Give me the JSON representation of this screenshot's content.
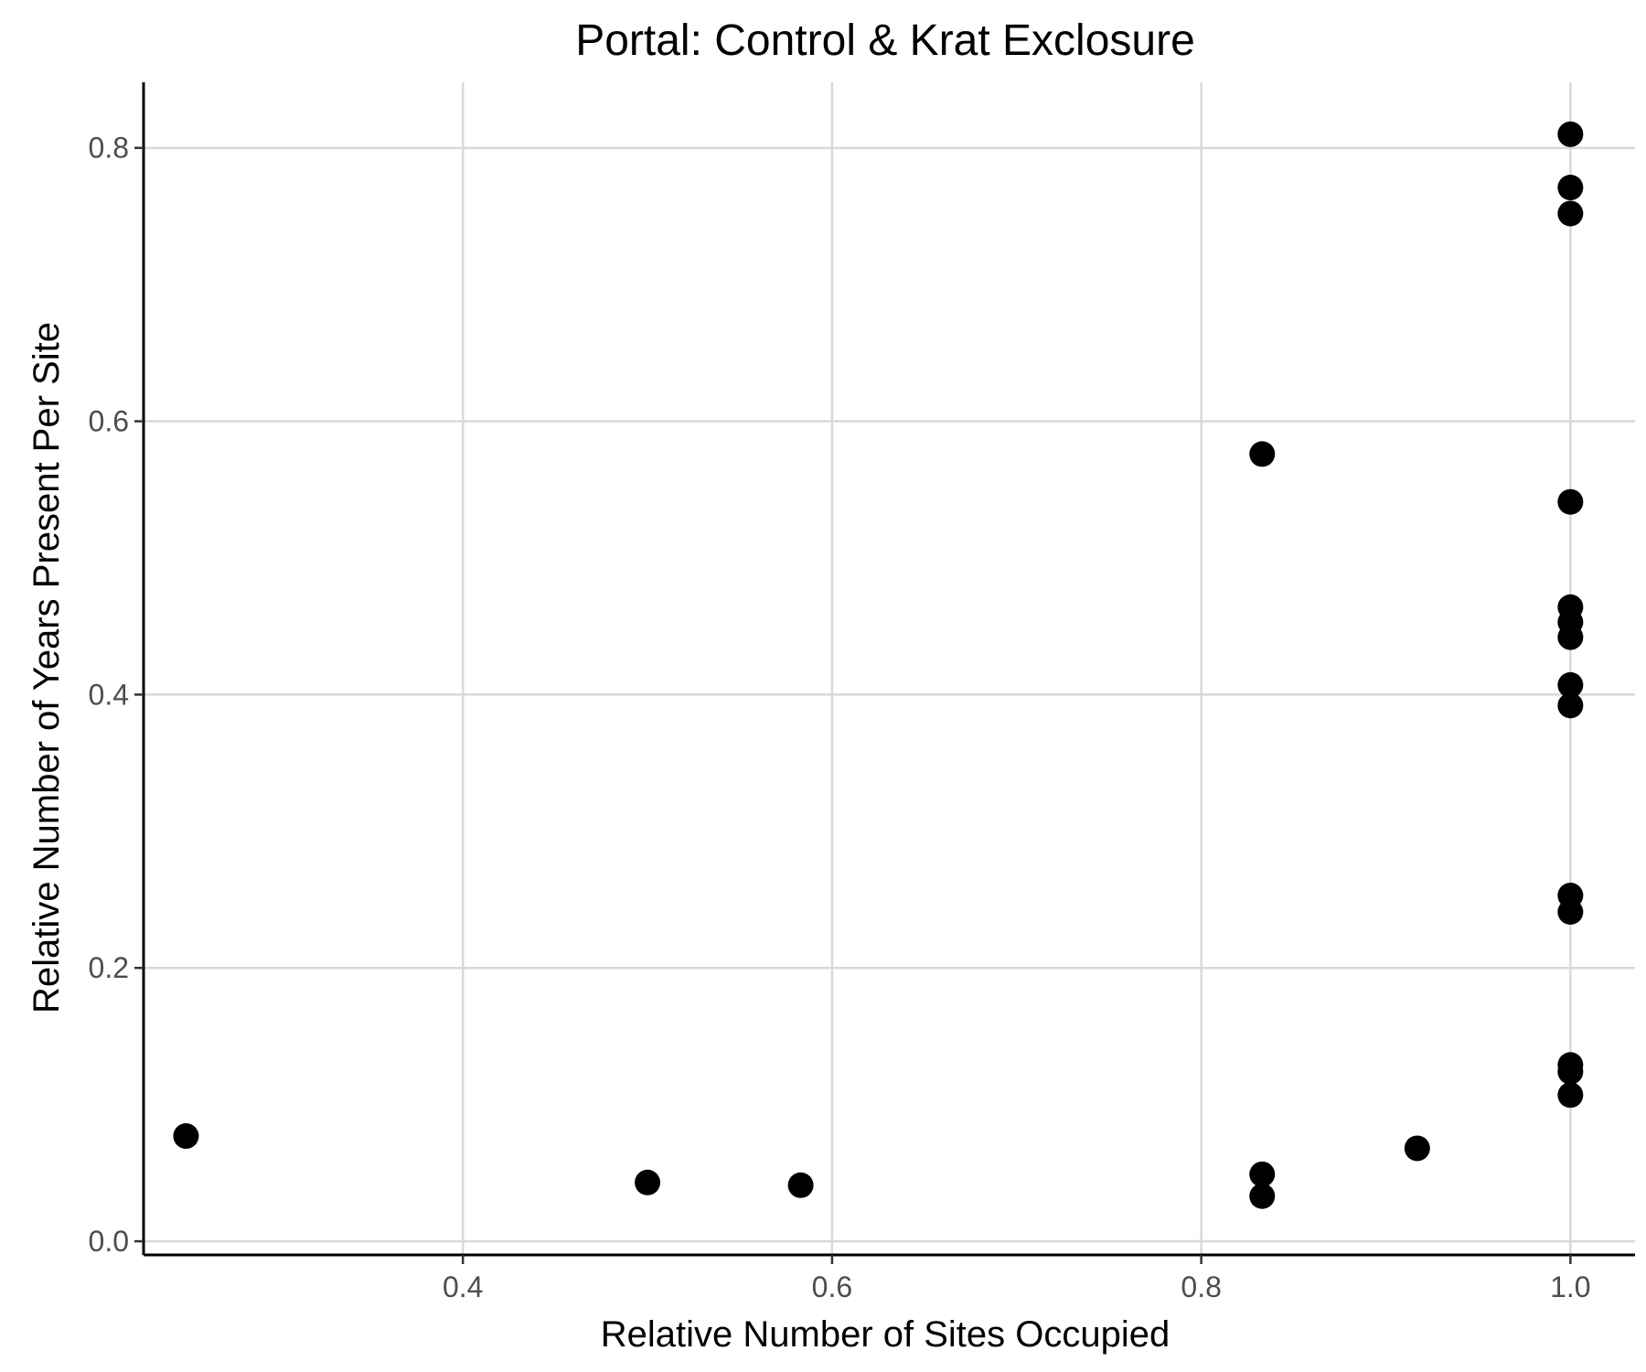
{
  "chart_data": {
    "type": "scatter",
    "title": "Portal: Control & Krat Exclosure",
    "xlabel": "Relative Number of Sites Occupied",
    "ylabel": "Relative Number of Years Present Per Site",
    "xlim": [
      0.227,
      1.035
    ],
    "ylim": [
      -0.01,
      0.848
    ],
    "x_ticks": [
      0.4,
      0.6,
      0.8,
      1.0
    ],
    "x_tick_labels": [
      "0.4",
      "0.6",
      "0.8",
      "1.0"
    ],
    "y_ticks": [
      0.0,
      0.2,
      0.4,
      0.6,
      0.8
    ],
    "y_tick_labels": [
      "0.0",
      "0.2",
      "0.4",
      "0.6",
      "0.8"
    ],
    "grid": true,
    "legend": "none",
    "point_color": "#000000",
    "points": [
      {
        "x": 0.25,
        "y": 0.077
      },
      {
        "x": 0.5,
        "y": 0.043
      },
      {
        "x": 0.583,
        "y": 0.041
      },
      {
        "x": 0.833,
        "y": 0.576
      },
      {
        "x": 0.833,
        "y": 0.049
      },
      {
        "x": 0.833,
        "y": 0.033
      },
      {
        "x": 0.917,
        "y": 0.068
      },
      {
        "x": 1.0,
        "y": 0.81
      },
      {
        "x": 1.0,
        "y": 0.771
      },
      {
        "x": 1.0,
        "y": 0.752
      },
      {
        "x": 1.0,
        "y": 0.541
      },
      {
        "x": 1.0,
        "y": 0.464
      },
      {
        "x": 1.0,
        "y": 0.453
      },
      {
        "x": 1.0,
        "y": 0.442
      },
      {
        "x": 1.0,
        "y": 0.407
      },
      {
        "x": 1.0,
        "y": 0.392
      },
      {
        "x": 1.0,
        "y": 0.253
      },
      {
        "x": 1.0,
        "y": 0.241
      },
      {
        "x": 1.0,
        "y": 0.129
      },
      {
        "x": 1.0,
        "y": 0.124
      },
      {
        "x": 1.0,
        "y": 0.107
      }
    ]
  }
}
